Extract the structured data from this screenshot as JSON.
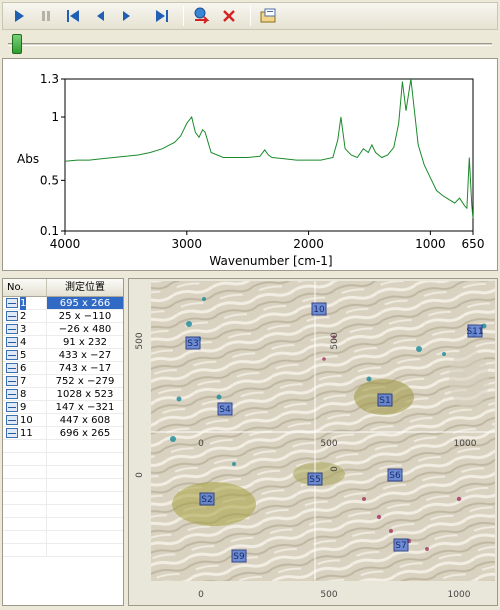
{
  "toolbar": {
    "buttons": [
      "play-icon",
      "pause-icon",
      "first-icon",
      "prev-icon",
      "next-icon",
      "last-icon",
      "transfer-icon",
      "delete-icon",
      "export-icon"
    ]
  },
  "spectrum": {
    "ylabel": "Abs",
    "xlabel": "Wavenumber [cm-1]",
    "y_ticks": [
      "1.3",
      "1",
      "0.5",
      "0.1"
    ],
    "x_ticks": [
      "4000",
      "3000",
      "2000",
      "1000",
      "650"
    ],
    "line_color": "#1a8a2a"
  },
  "chart_data": {
    "type": "line",
    "xlabel": "Wavenumber [cm-1]",
    "ylabel": "Abs",
    "xlim": [
      4000,
      650
    ],
    "ylim": [
      0.1,
      1.3
    ],
    "x": [
      4000,
      3900,
      3800,
      3700,
      3600,
      3500,
      3400,
      3300,
      3200,
      3100,
      3050,
      3000,
      2960,
      2930,
      2900,
      2870,
      2850,
      2800,
      2700,
      2500,
      2400,
      2360,
      2330,
      2300,
      2200,
      2100,
      2000,
      1900,
      1800,
      1760,
      1735,
      1700,
      1650,
      1600,
      1550,
      1510,
      1480,
      1450,
      1400,
      1350,
      1300,
      1260,
      1230,
      1200,
      1160,
      1100,
      1050,
      1000,
      950,
      900,
      850,
      800,
      760,
      720,
      700,
      680,
      660,
      650
    ],
    "series": [
      {
        "values": [
          0.65,
          0.66,
          0.66,
          0.67,
          0.68,
          0.69,
          0.7,
          0.72,
          0.75,
          0.8,
          0.85,
          0.95,
          1.0,
          0.88,
          0.84,
          0.9,
          0.88,
          0.72,
          0.68,
          0.68,
          0.69,
          0.74,
          0.7,
          0.68,
          0.67,
          0.66,
          0.66,
          0.66,
          0.68,
          0.82,
          1.0,
          0.75,
          0.7,
          0.68,
          0.75,
          0.72,
          0.78,
          0.72,
          0.68,
          0.7,
          0.76,
          0.95,
          1.28,
          1.05,
          1.3,
          0.78,
          0.62,
          0.52,
          0.42,
          0.38,
          0.35,
          0.32,
          0.36,
          0.3,
          0.28,
          0.68,
          0.3,
          0.2
        ]
      }
    ]
  },
  "list": {
    "header_no": "No.",
    "header_pos": "測定位置",
    "rows": [
      {
        "no": "1",
        "pos": "695 x 266"
      },
      {
        "no": "2",
        "pos": "25 x −110"
      },
      {
        "no": "3",
        "pos": "−26 x 480"
      },
      {
        "no": "4",
        "pos": "91 x 232"
      },
      {
        "no": "5",
        "pos": "433 x −27"
      },
      {
        "no": "6",
        "pos": "743 x −17"
      },
      {
        "no": "7",
        "pos": "752 x −279"
      },
      {
        "no": "8",
        "pos": "1028 x 523"
      },
      {
        "no": "9",
        "pos": "147 x −321"
      },
      {
        "no": "10",
        "pos": "447 x 608"
      },
      {
        "no": "11",
        "pos": "696 x 265"
      }
    ]
  },
  "image": {
    "markers": [
      "10",
      "S3",
      "S4",
      "S1",
      "S11",
      "S5",
      "S6",
      "S2",
      "S7",
      "S9"
    ],
    "left_ticks": [
      "500",
      "0"
    ],
    "center_ticks": [
      "500",
      "0"
    ],
    "bottom_ticks": [
      "0",
      "500",
      "1000"
    ],
    "mid_ticks": [
      "0",
      "500",
      "1000"
    ]
  }
}
